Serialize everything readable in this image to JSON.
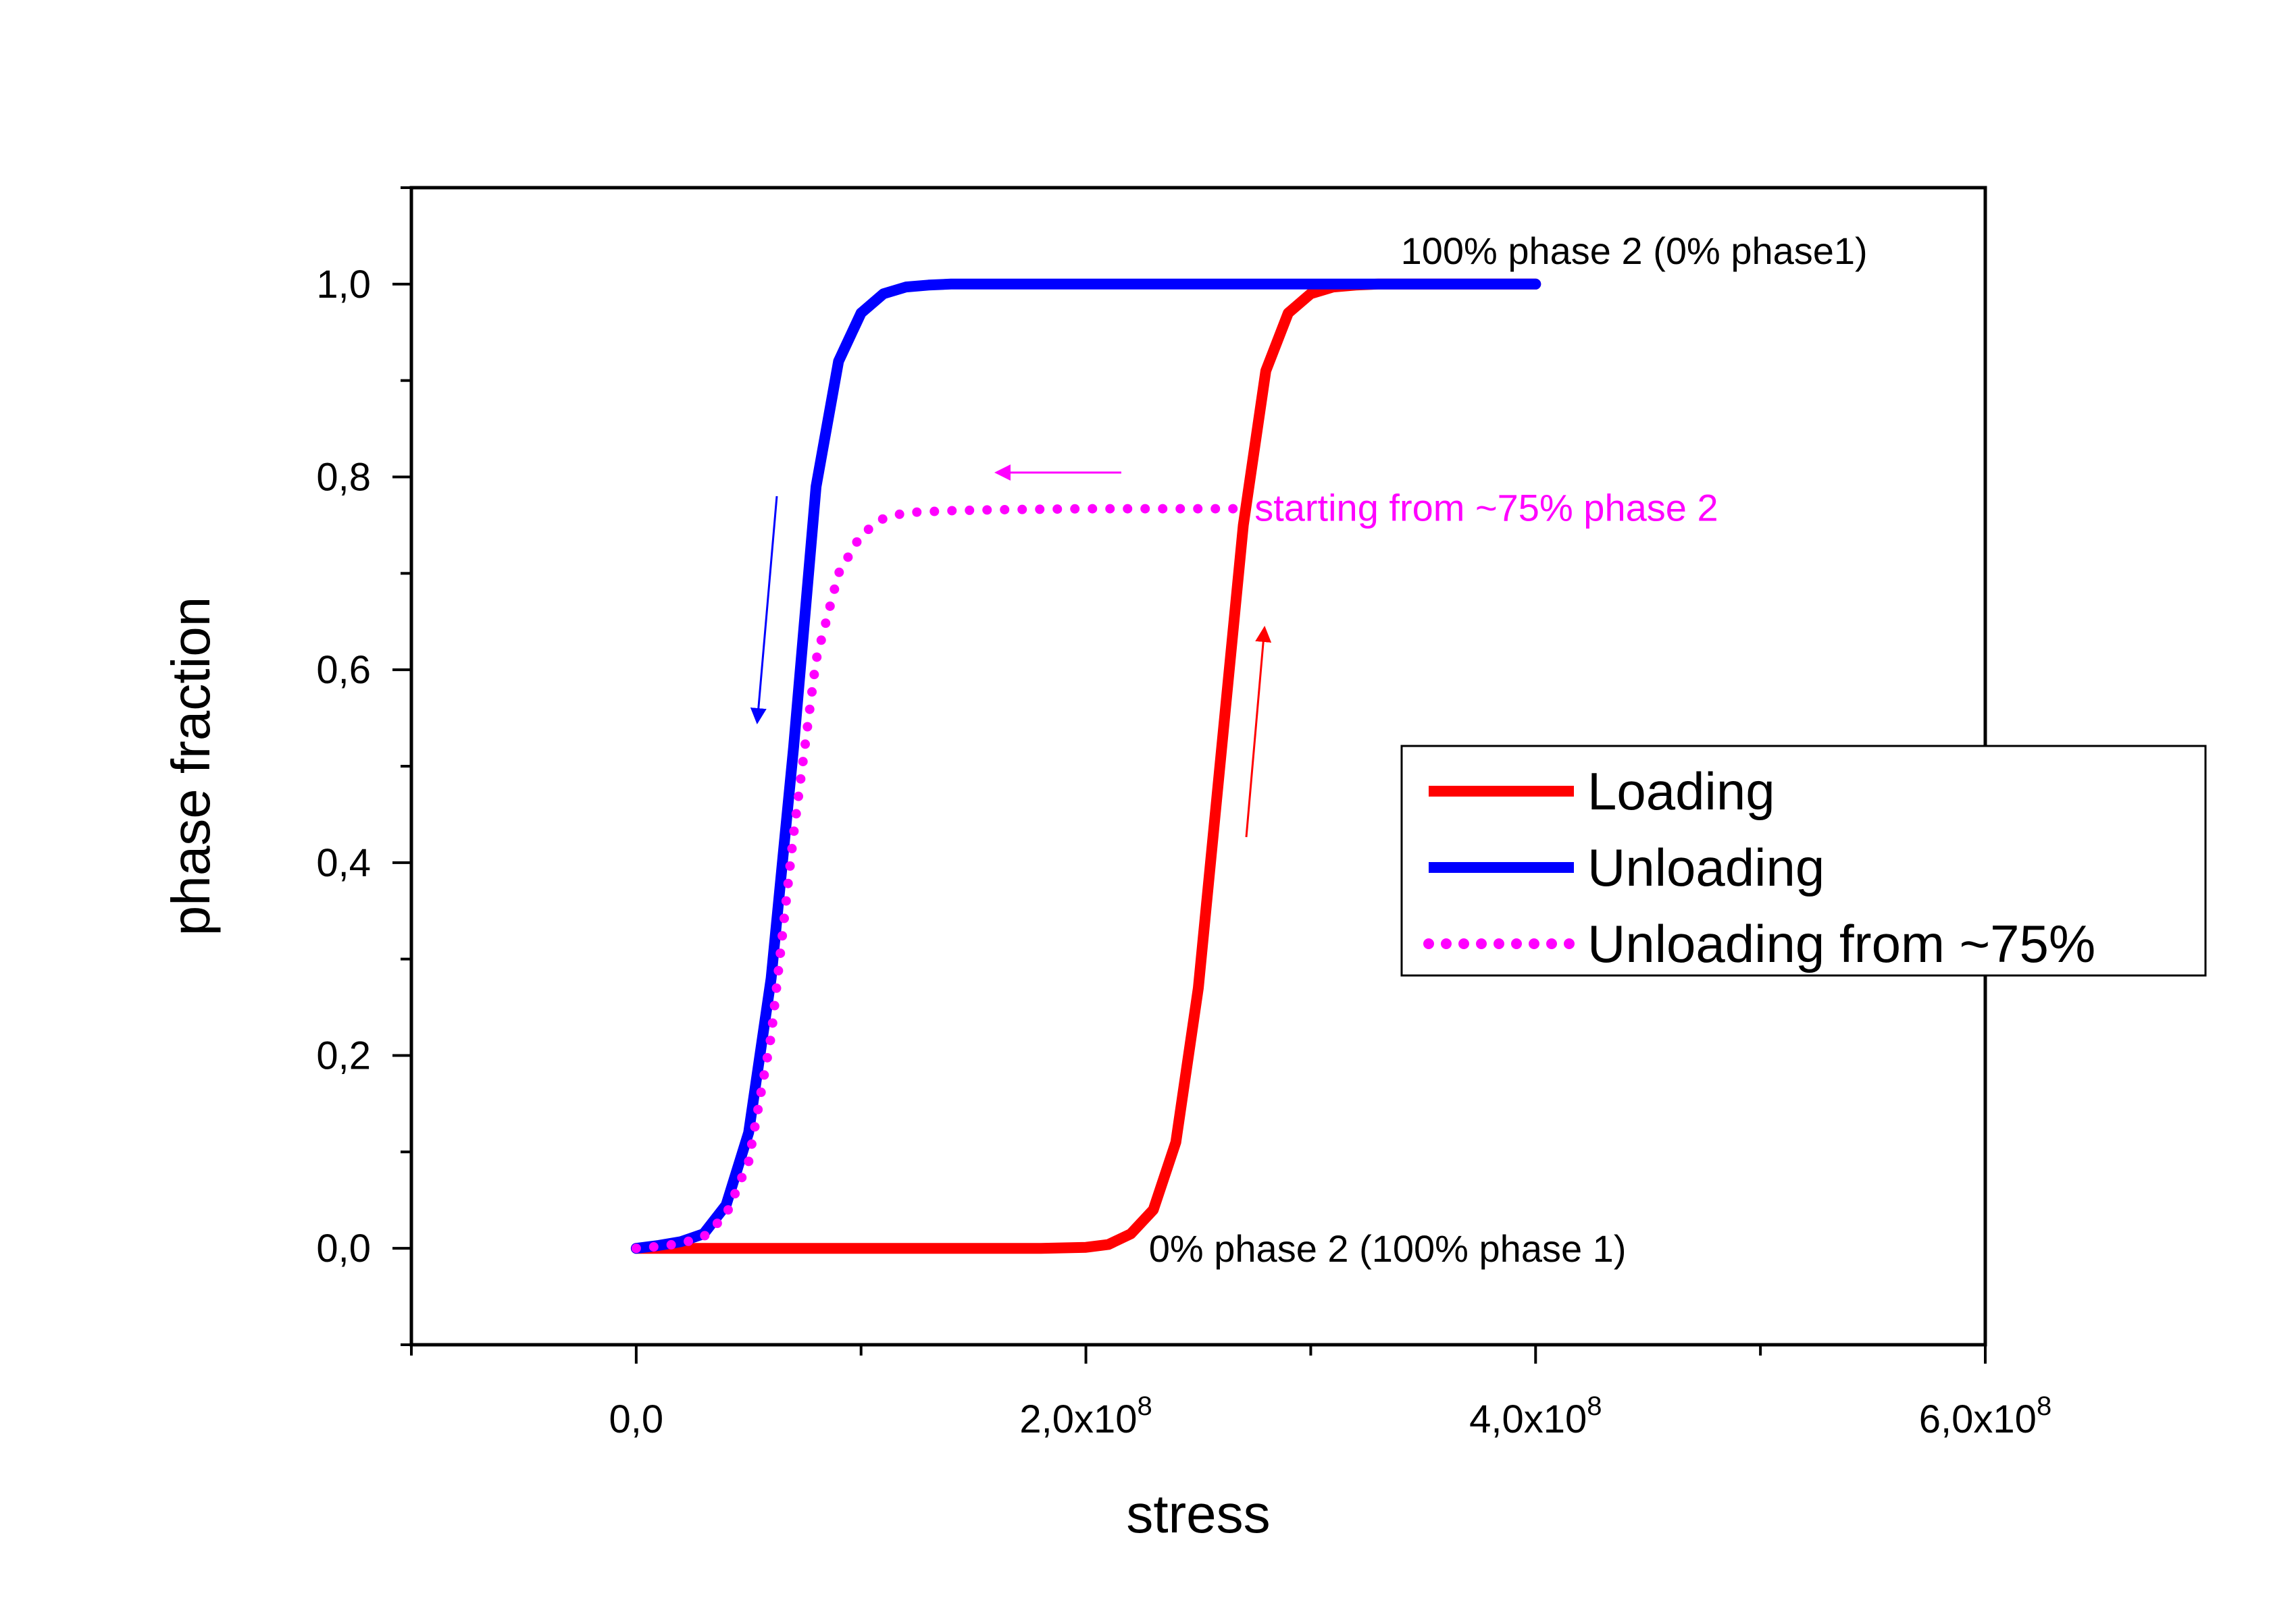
{
  "chart_data": {
    "type": "line",
    "title": "",
    "xlabel": "stress",
    "ylabel": "phase fraction",
    "xlim": [
      -100000000,
      600000000
    ],
    "ylim": [
      -0.1,
      1.1
    ],
    "grid": false,
    "legend_position": "right",
    "x_ticks": [
      {
        "value": 0,
        "label": "0,0",
        "exp": ""
      },
      {
        "value": 200000000,
        "label": "2,0x10",
        "exp": "8"
      },
      {
        "value": 400000000,
        "label": "4,0x10",
        "exp": "8"
      },
      {
        "value": 600000000,
        "label": "6,0x10",
        "exp": "8"
      }
    ],
    "y_ticks": [
      {
        "value": 0.0,
        "label": "0,0"
      },
      {
        "value": 0.2,
        "label": "0,2"
      },
      {
        "value": 0.4,
        "label": "0,4"
      },
      {
        "value": 0.6,
        "label": "0,6"
      },
      {
        "value": 0.8,
        "label": "0,8"
      },
      {
        "value": 1.0,
        "label": "1,0"
      }
    ],
    "series": [
      {
        "name": "Loading",
        "color": "#ff0000",
        "style": "solid",
        "x": [
          0,
          20000000,
          40000000,
          60000000,
          80000000,
          100000000,
          120000000,
          140000000,
          160000000,
          180000000,
          200000000,
          210000000,
          220000000,
          230000000,
          240000000,
          250000000,
          260000000,
          270000000,
          280000000,
          290000000,
          300000000,
          310000000,
          320000000,
          330000000,
          340000000,
          360000000,
          380000000,
          400000000
        ],
        "y": [
          0,
          0,
          0,
          0,
          0,
          0,
          0,
          0,
          0,
          0,
          0.001,
          0.004,
          0.015,
          0.04,
          0.11,
          0.27,
          0.51,
          0.75,
          0.91,
          0.97,
          0.99,
          0.997,
          0.999,
          1,
          1,
          1,
          1,
          1
        ]
      },
      {
        "name": "Unloading",
        "color": "#0000ff",
        "style": "solid",
        "x": [
          0,
          10000000,
          20000000,
          30000000,
          40000000,
          50000000,
          60000000,
          70000000,
          80000000,
          90000000,
          100000000,
          110000000,
          120000000,
          130000000,
          140000000,
          160000000,
          200000000,
          250000000,
          300000000,
          350000000,
          400000000
        ],
        "y": [
          0,
          0.003,
          0.007,
          0.015,
          0.045,
          0.12,
          0.28,
          0.52,
          0.79,
          0.92,
          0.97,
          0.99,
          0.997,
          0.999,
          1,
          1,
          1,
          1,
          1,
          1,
          1
        ]
      },
      {
        "name": "Unloading from ~75%",
        "color": "#ff00ff",
        "style": "dotted",
        "x": [
          0,
          10000000,
          20000000,
          30000000,
          40000000,
          50000000,
          60000000,
          70000000,
          80000000,
          90000000,
          100000000,
          110000000,
          120000000,
          140000000,
          160000000,
          200000000,
          240000000,
          270000000
        ],
        "y": [
          0,
          0.002,
          0.005,
          0.012,
          0.035,
          0.09,
          0.22,
          0.43,
          0.61,
          0.7,
          0.74,
          0.757,
          0.763,
          0.765,
          0.766,
          0.767,
          0.767,
          0.767
        ]
      }
    ],
    "annotations": [
      {
        "text": "100% phase 2 (0% phase1)",
        "x": 340000000,
        "y": 1.0,
        "color": "#000000"
      },
      {
        "text": "starting from ~75% phase 2",
        "x": 275000000,
        "y": 0.767,
        "color": "#ff00ff"
      },
      {
        "text": "0% phase 2 (100% phase 1)",
        "x": 228000000,
        "y": 0.0,
        "color": "#000000"
      }
    ]
  }
}
